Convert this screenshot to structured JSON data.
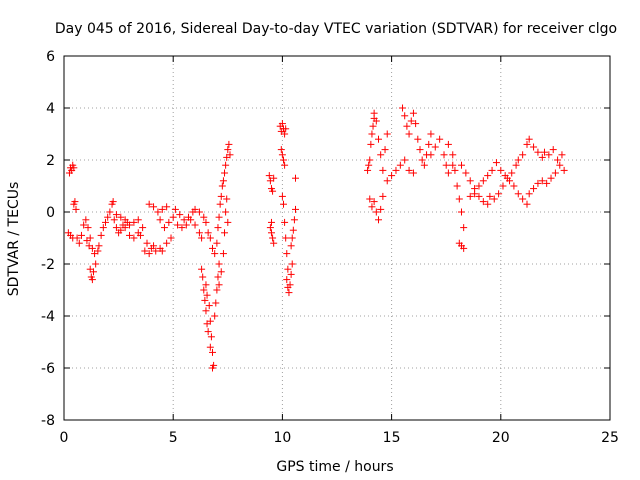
{
  "chart_data": {
    "type": "scatter",
    "title": "Day 045 of 2016, Sidereal Day-to-day VTEC variation (SDTVAR) for receiver clgo",
    "xlabel": "GPS time / hours",
    "ylabel": "SDTVAR / TECUs",
    "xlim": [
      0,
      25
    ],
    "ylim": [
      -8,
      6
    ],
    "xticks": [
      0,
      5,
      10,
      15,
      20,
      25
    ],
    "yticks": [
      -8,
      -6,
      -4,
      -2,
      0,
      2,
      4,
      6
    ],
    "grid": true,
    "marker": "plus",
    "color": "#ff0000",
    "series": [
      {
        "name": "SDTVAR",
        "points": [
          [
            0.25,
            1.5
          ],
          [
            0.3,
            1.7
          ],
          [
            0.35,
            1.6
          ],
          [
            0.4,
            1.8
          ],
          [
            0.45,
            1.7
          ],
          [
            0.2,
            -0.8
          ],
          [
            0.3,
            -0.9
          ],
          [
            0.4,
            -1.0
          ],
          [
            0.45,
            0.3
          ],
          [
            0.5,
            0.4
          ],
          [
            0.55,
            0.1
          ],
          [
            0.6,
            -1.0
          ],
          [
            0.7,
            -1.2
          ],
          [
            0.8,
            -0.9
          ],
          [
            0.9,
            -0.5
          ],
          [
            1.0,
            -0.3
          ],
          [
            1.1,
            -0.6
          ],
          [
            1.2,
            -1.0
          ],
          [
            1.3,
            -1.4
          ],
          [
            1.4,
            -1.6
          ],
          [
            1.05,
            -1.1
          ],
          [
            1.15,
            -1.3
          ],
          [
            1.2,
            -2.2
          ],
          [
            1.25,
            -2.5
          ],
          [
            1.3,
            -2.6
          ],
          [
            1.35,
            -2.3
          ],
          [
            1.45,
            -2.0
          ],
          [
            1.55,
            -1.5
          ],
          [
            1.6,
            -1.3
          ],
          [
            1.7,
            -0.9
          ],
          [
            1.8,
            -0.6
          ],
          [
            1.9,
            -0.4
          ],
          [
            2.0,
            -0.2
          ],
          [
            2.1,
            0.0
          ],
          [
            2.2,
            0.3
          ],
          [
            2.25,
            0.4
          ],
          [
            2.3,
            -0.3
          ],
          [
            2.4,
            -0.6
          ],
          [
            2.5,
            -0.8
          ],
          [
            2.6,
            -0.7
          ],
          [
            2.7,
            -0.5
          ],
          [
            2.8,
            -0.3
          ],
          [
            2.9,
            -0.4
          ],
          [
            2.4,
            -0.1
          ],
          [
            2.6,
            -0.2
          ],
          [
            2.8,
            -0.6
          ],
          [
            3.0,
            -0.9
          ],
          [
            3.2,
            -1.0
          ],
          [
            3.4,
            -0.8
          ],
          [
            3.5,
            -0.9
          ],
          [
            3.0,
            -0.5
          ],
          [
            3.2,
            -0.4
          ],
          [
            3.4,
            -0.3
          ],
          [
            3.6,
            -0.6
          ],
          [
            3.8,
            -1.2
          ],
          [
            4.0,
            -1.4
          ],
          [
            4.1,
            -1.3
          ],
          [
            3.7,
            -1.5
          ],
          [
            3.9,
            -1.6
          ],
          [
            4.2,
            -1.5
          ],
          [
            4.4,
            -1.4
          ],
          [
            4.5,
            -1.5
          ],
          [
            4.7,
            -1.2
          ],
          [
            4.9,
            -1.0
          ],
          [
            3.9,
            0.3
          ],
          [
            4.1,
            0.2
          ],
          [
            4.3,
            0.0
          ],
          [
            4.4,
            -0.3
          ],
          [
            4.6,
            -0.6
          ],
          [
            4.8,
            -0.4
          ],
          [
            5.0,
            -0.2
          ],
          [
            4.5,
            0.1
          ],
          [
            4.7,
            0.2
          ],
          [
            5.1,
            0.1
          ],
          [
            5.3,
            -0.1
          ],
          [
            5.5,
            -0.3
          ],
          [
            5.7,
            -0.2
          ],
          [
            5.9,
            0.0
          ],
          [
            5.2,
            -0.5
          ],
          [
            5.4,
            -0.6
          ],
          [
            5.6,
            -0.5
          ],
          [
            5.8,
            -0.3
          ],
          [
            6.0,
            -0.5
          ],
          [
            6.2,
            -0.8
          ],
          [
            6.3,
            -1.0
          ],
          [
            6.0,
            0.1
          ],
          [
            6.2,
            0.0
          ],
          [
            6.4,
            -0.2
          ],
          [
            6.5,
            -0.4
          ],
          [
            6.6,
            -0.8
          ],
          [
            6.7,
            -1.0
          ],
          [
            6.8,
            -1.4
          ],
          [
            6.3,
            -2.2
          ],
          [
            6.35,
            -2.5
          ],
          [
            6.4,
            -3.0
          ],
          [
            6.45,
            -3.4
          ],
          [
            6.5,
            -3.8
          ],
          [
            6.55,
            -4.3
          ],
          [
            6.6,
            -4.6
          ],
          [
            6.5,
            -2.8
          ],
          [
            6.55,
            -3.2
          ],
          [
            6.65,
            -3.6
          ],
          [
            6.7,
            -4.2
          ],
          [
            6.75,
            -4.8
          ],
          [
            6.8,
            -5.4
          ],
          [
            6.85,
            -5.9
          ],
          [
            6.7,
            -5.2
          ],
          [
            6.8,
            -6.0
          ],
          [
            6.9,
            -4.0
          ],
          [
            6.95,
            -3.5
          ],
          [
            7.0,
            -3.0
          ],
          [
            7.05,
            -2.5
          ],
          [
            7.1,
            -2.0
          ],
          [
            6.9,
            -1.6
          ],
          [
            7.0,
            -1.2
          ],
          [
            7.05,
            -0.6
          ],
          [
            7.1,
            -0.2
          ],
          [
            7.15,
            0.3
          ],
          [
            7.2,
            0.6
          ],
          [
            7.25,
            1.0
          ],
          [
            7.1,
            -2.8
          ],
          [
            7.2,
            -2.3
          ],
          [
            7.3,
            -1.6
          ],
          [
            7.35,
            -0.8
          ],
          [
            7.4,
            0.0
          ],
          [
            7.45,
            0.5
          ],
          [
            7.5,
            -0.4
          ],
          [
            7.3,
            1.2
          ],
          [
            7.35,
            1.5
          ],
          [
            7.4,
            1.8
          ],
          [
            7.45,
            2.1
          ],
          [
            7.5,
            2.4
          ],
          [
            7.55,
            2.6
          ],
          [
            7.6,
            2.2
          ],
          [
            9.4,
            1.4
          ],
          [
            9.45,
            1.2
          ],
          [
            9.5,
            0.9
          ],
          [
            9.55,
            0.8
          ],
          [
            9.6,
            1.3
          ],
          [
            9.45,
            -0.6
          ],
          [
            9.5,
            -0.8
          ],
          [
            9.55,
            -1.0
          ],
          [
            9.6,
            -1.2
          ],
          [
            9.5,
            -0.4
          ],
          [
            9.9,
            3.3
          ],
          [
            9.95,
            3.1
          ],
          [
            10.0,
            3.4
          ],
          [
            10.05,
            3.2
          ],
          [
            10.1,
            3.0
          ],
          [
            10.15,
            3.2
          ],
          [
            9.95,
            2.4
          ],
          [
            10.0,
            2.2
          ],
          [
            10.05,
            2.0
          ],
          [
            10.1,
            1.8
          ],
          [
            10.0,
            0.6
          ],
          [
            10.05,
            0.3
          ],
          [
            10.1,
            -0.4
          ],
          [
            10.15,
            -1.0
          ],
          [
            10.2,
            -1.6
          ],
          [
            10.25,
            -2.2
          ],
          [
            10.2,
            -2.6
          ],
          [
            10.25,
            -2.9
          ],
          [
            10.3,
            -3.1
          ],
          [
            10.35,
            -2.8
          ],
          [
            10.4,
            -2.4
          ],
          [
            10.45,
            -2.0
          ],
          [
            10.4,
            -1.3
          ],
          [
            10.45,
            -1.0
          ],
          [
            10.5,
            -0.7
          ],
          [
            10.55,
            -0.3
          ],
          [
            10.6,
            0.1
          ],
          [
            10.6,
            1.3
          ],
          [
            13.9,
            1.6
          ],
          [
            13.95,
            1.8
          ],
          [
            14.0,
            2.0
          ],
          [
            14.05,
            2.6
          ],
          [
            14.1,
            3.0
          ],
          [
            14.15,
            3.3
          ],
          [
            14.2,
            3.6
          ],
          [
            14.0,
            0.5
          ],
          [
            14.1,
            0.2
          ],
          [
            14.2,
            0.4
          ],
          [
            14.3,
            0.0
          ],
          [
            14.4,
            -0.3
          ],
          [
            14.5,
            0.1
          ],
          [
            14.6,
            0.6
          ],
          [
            14.2,
            3.8
          ],
          [
            14.3,
            3.5
          ],
          [
            14.4,
            2.8
          ],
          [
            14.5,
            2.2
          ],
          [
            14.6,
            1.6
          ],
          [
            14.7,
            2.4
          ],
          [
            14.8,
            3.0
          ],
          [
            14.8,
            1.2
          ],
          [
            15.0,
            1.4
          ],
          [
            15.2,
            1.6
          ],
          [
            15.4,
            1.8
          ],
          [
            15.6,
            2.0
          ],
          [
            15.8,
            1.6
          ],
          [
            16.0,
            1.5
          ],
          [
            15.5,
            4.0
          ],
          [
            15.6,
            3.7
          ],
          [
            15.7,
            3.3
          ],
          [
            15.8,
            3.0
          ],
          [
            15.9,
            3.5
          ],
          [
            16.0,
            3.8
          ],
          [
            16.1,
            3.4
          ],
          [
            16.2,
            2.8
          ],
          [
            16.3,
            2.4
          ],
          [
            16.4,
            2.0
          ],
          [
            16.5,
            1.8
          ],
          [
            16.6,
            2.2
          ],
          [
            16.7,
            2.6
          ],
          [
            16.8,
            3.0
          ],
          [
            16.8,
            2.2
          ],
          [
            17.0,
            2.5
          ],
          [
            17.2,
            2.8
          ],
          [
            17.4,
            2.2
          ],
          [
            17.5,
            1.8
          ],
          [
            17.6,
            1.5
          ],
          [
            17.8,
            1.8
          ],
          [
            17.6,
            2.6
          ],
          [
            17.8,
            2.2
          ],
          [
            17.9,
            1.6
          ],
          [
            18.0,
            1.0
          ],
          [
            18.1,
            0.5
          ],
          [
            18.2,
            0.0
          ],
          [
            18.3,
            -0.6
          ],
          [
            18.1,
            -1.2
          ],
          [
            18.2,
            -1.3
          ],
          [
            18.3,
            -1.4
          ],
          [
            18.2,
            1.8
          ],
          [
            18.4,
            1.5
          ],
          [
            18.6,
            1.2
          ],
          [
            18.8,
            0.9
          ],
          [
            19.0,
            0.6
          ],
          [
            19.2,
            0.4
          ],
          [
            19.4,
            0.3
          ],
          [
            18.6,
            0.6
          ],
          [
            18.8,
            0.7
          ],
          [
            19.0,
            1.0
          ],
          [
            19.2,
            1.2
          ],
          [
            19.4,
            1.4
          ],
          [
            19.6,
            1.6
          ],
          [
            19.8,
            1.9
          ],
          [
            19.5,
            0.6
          ],
          [
            19.7,
            0.5
          ],
          [
            19.9,
            0.7
          ],
          [
            20.1,
            1.0
          ],
          [
            20.3,
            1.3
          ],
          [
            20.5,
            1.5
          ],
          [
            20.7,
            1.8
          ],
          [
            20.0,
            1.6
          ],
          [
            20.2,
            1.4
          ],
          [
            20.4,
            1.2
          ],
          [
            20.6,
            1.0
          ],
          [
            20.8,
            0.7
          ],
          [
            21.0,
            0.5
          ],
          [
            21.2,
            0.3
          ],
          [
            20.8,
            2.0
          ],
          [
            21.0,
            2.2
          ],
          [
            21.2,
            2.6
          ],
          [
            21.3,
            2.8
          ],
          [
            21.5,
            2.5
          ],
          [
            21.7,
            2.3
          ],
          [
            21.9,
            2.1
          ],
          [
            21.3,
            0.7
          ],
          [
            21.5,
            0.9
          ],
          [
            21.7,
            1.1
          ],
          [
            21.9,
            1.2
          ],
          [
            22.1,
            1.1
          ],
          [
            22.3,
            1.3
          ],
          [
            22.5,
            1.5
          ],
          [
            22.0,
            2.3
          ],
          [
            22.2,
            2.2
          ],
          [
            22.4,
            2.4
          ],
          [
            22.6,
            2.0
          ],
          [
            22.7,
            1.8
          ],
          [
            22.8,
            2.2
          ],
          [
            22.9,
            1.6
          ]
        ]
      }
    ]
  }
}
